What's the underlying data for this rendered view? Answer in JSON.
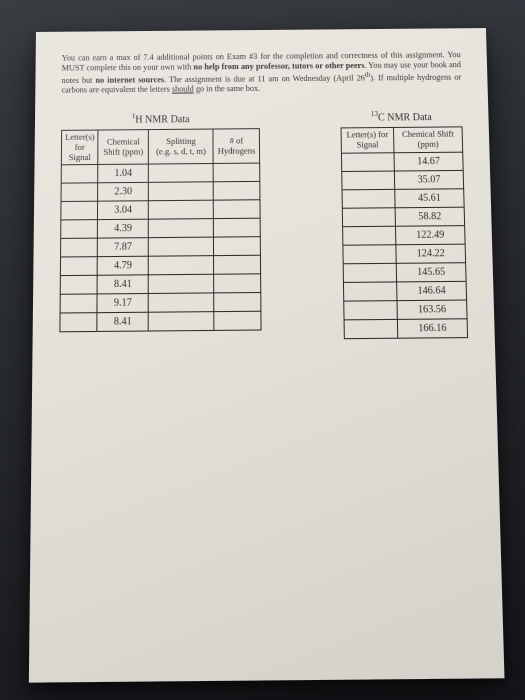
{
  "instructions_html": "You can earn a max of 7.4 additional points on Exam #3 for the completion and correctness of this assignment. You MUST complete this on your own with <b>no help from any professor, tutors or other peers</b>. You may use your book and notes but <b>no internet sources</b>. The assignment is due at 11 am on Wednesday (April 26<sup>th</sup>). If multiple hydrogens or carbons are equivalent the letters <u>should</u> go in the same box.",
  "left": {
    "title_html": "<sup>1</sup>H NMR Data",
    "headers": {
      "c1a": "Letter(s)",
      "c1b": "for Signal",
      "c2a": "Chemical",
      "c2b": "Shift (ppm)",
      "c3a": "Splitting",
      "c3b": "(e.g. s, d, t, m)",
      "c4a": "# of",
      "c4b": "Hydrogens"
    },
    "rows": [
      {
        "shift": "1.04"
      },
      {
        "shift": "2.30"
      },
      {
        "shift": "3.04"
      },
      {
        "shift": "4.39"
      },
      {
        "shift": "7.87"
      },
      {
        "shift": "4.79"
      },
      {
        "shift": "8.41"
      },
      {
        "shift": "9.17"
      },
      {
        "shift": "8.41"
      }
    ]
  },
  "right": {
    "title_html": "<sup>13</sup>C NMR Data",
    "headers": {
      "c1a": "Letter(s) for",
      "c1b": "Signal",
      "c2a": "Chemical Shift",
      "c2b": "(ppm)"
    },
    "rows": [
      {
        "shift": "14.67"
      },
      {
        "shift": "35.07"
      },
      {
        "shift": "45.61"
      },
      {
        "shift": "58.82"
      },
      {
        "shift": "122.49"
      },
      {
        "shift": "124.22"
      },
      {
        "shift": "145.65"
      },
      {
        "shift": "146.64"
      },
      {
        "shift": "163.56"
      },
      {
        "shift": "166.16"
      }
    ]
  }
}
